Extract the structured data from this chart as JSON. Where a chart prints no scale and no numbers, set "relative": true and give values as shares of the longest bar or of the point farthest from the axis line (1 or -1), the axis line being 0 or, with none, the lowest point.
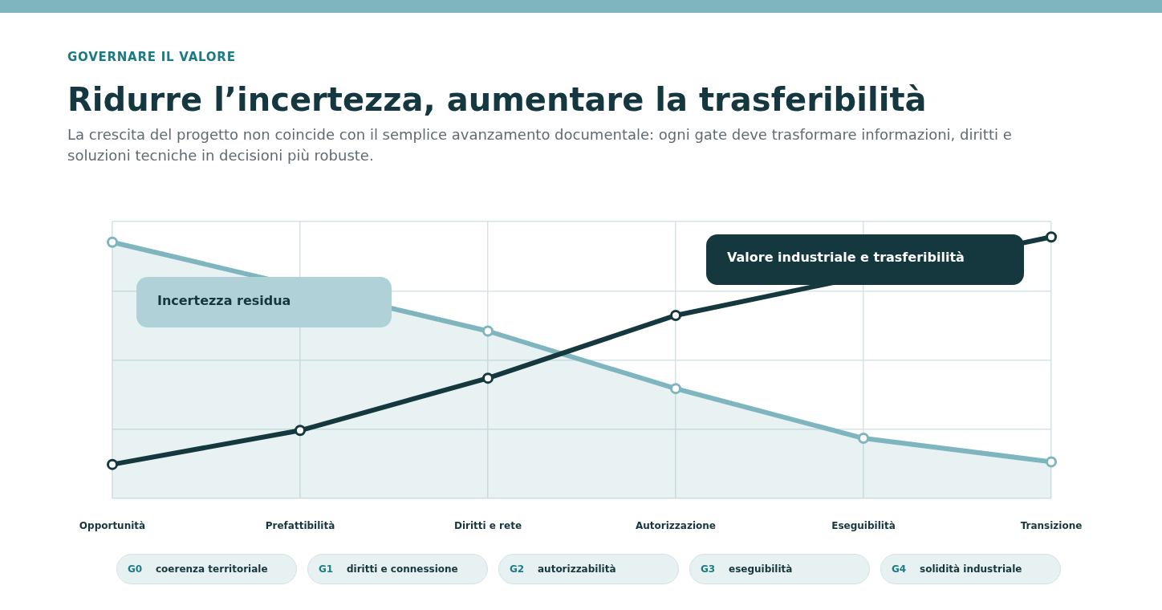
{
  "chart_data": {
    "type": "line",
    "title": "Ridurre l’incertezza, aumentare la trasferibilità",
    "subtitle": "La crescita del progetto non coincide con il semplice avanzamento documentale: ogni gate deve trasformare informazioni, diritti e soluzioni tecniche in decisioni più robuste.",
    "annotations": [
      "GOVERNARE IL VALORE",
      "G0 coerenza territoriale",
      "G1 diritti e connessione",
      "G2 autorizzabilità",
      "G3 eseguibilità",
      "G4 solidità industriale"
    ],
    "categories": [
      "Opportunità",
      "Prefattibilità",
      "Diritti e rete",
      "Autorizzazione",
      "Eseguibilità",
      "Transizione"
    ],
    "series": [
      {
        "name": "Incertezza residua",
        "type": "area",
        "color": "#7fb5bf",
        "values": [
          0.98,
          null,
          0.64,
          0.42,
          0.23,
          0.14
        ]
      },
      {
        "name": "Valore industriale e trasferibilità",
        "type": "line",
        "color": "#15383f",
        "values": [
          0.13,
          0.26,
          0.46,
          0.7,
          null,
          1
        ]
      }
    ],
    "relative": true,
    "grid": true,
    "marker": "circle"
  }
}
